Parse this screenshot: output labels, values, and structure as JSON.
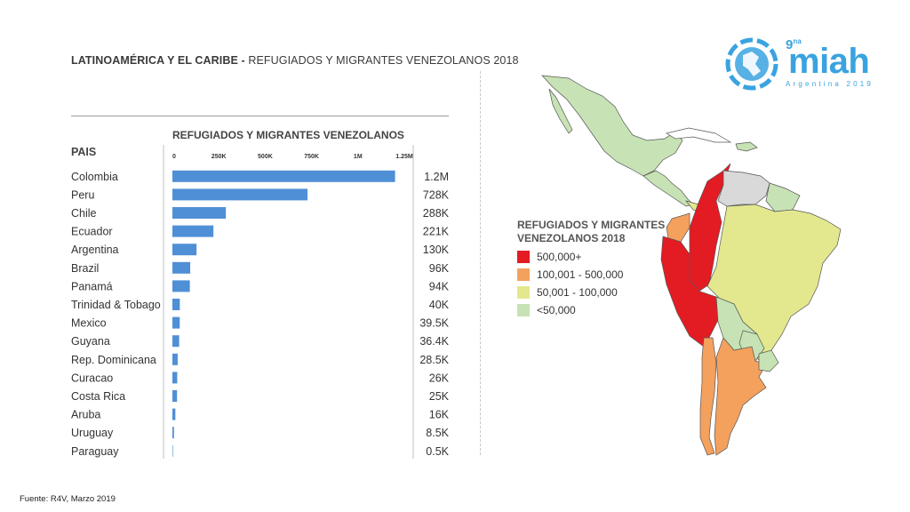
{
  "page": {
    "title_bold": "LATINOAMÉRICA Y EL CARIBE -",
    "title_rest": " REFUGIADOS Y MIGRANTES VENEZOLANOS 2018",
    "source": "Fuente: R4V, Marzo 2019"
  },
  "chart_data": {
    "type": "bar",
    "orientation": "horizontal",
    "title": "REFUGIADOS Y MIGRANTES VENEZOLANOS",
    "category_header": "PAIS",
    "categories": [
      "Colombia",
      "Peru",
      "Chile",
      "Ecuador",
      "Argentina",
      "Brazil",
      "Panamá",
      "Trinidad & Tobago",
      "Mexico",
      "Guyana",
      "Rep. Dominicana",
      "Curacao",
      "Costa Rica",
      "Aruba",
      "Uruguay",
      "Paraguay"
    ],
    "values": [
      1200000,
      728000,
      288000,
      221000,
      130000,
      96000,
      94000,
      40000,
      39500,
      36400,
      28500,
      26000,
      25000,
      16000,
      8500,
      500
    ],
    "value_labels": [
      "1.2M",
      "728K",
      "288K",
      "221K",
      "130K",
      "96K",
      "94K",
      "40K",
      "39.5K",
      "36.4K",
      "28.5K",
      "26K",
      "25K",
      "16K",
      "8.5K",
      "0.5K"
    ],
    "xlim": [
      0,
      1250000
    ],
    "x_ticks": [
      0,
      250000,
      500000,
      750000,
      1000000,
      1250000
    ],
    "x_tick_labels": [
      "0",
      "250K",
      "500K",
      "750K",
      "1M",
      "1.25M"
    ],
    "bar_color": "#4f8fd6"
  },
  "map_legend": {
    "title_line1": "REFUGIADOS Y MIGRANTES",
    "title_line2": "VENEZOLANOS 2018",
    "items": [
      {
        "label": "500,000+",
        "color": "#e31b23"
      },
      {
        "label": "100,001 - 500,000",
        "color": "#f4a15d"
      },
      {
        "label": "50,001 - 100,000",
        "color": "#e3e88e"
      },
      {
        "label": "<50,000",
        "color": "#c7e2b4"
      }
    ],
    "other_color": "#d9d9d9"
  },
  "logo": {
    "edition": "9",
    "edition_suffix": "na",
    "word": "miah",
    "subtitle": "Argentina 2019",
    "color": "#3aa3df"
  }
}
